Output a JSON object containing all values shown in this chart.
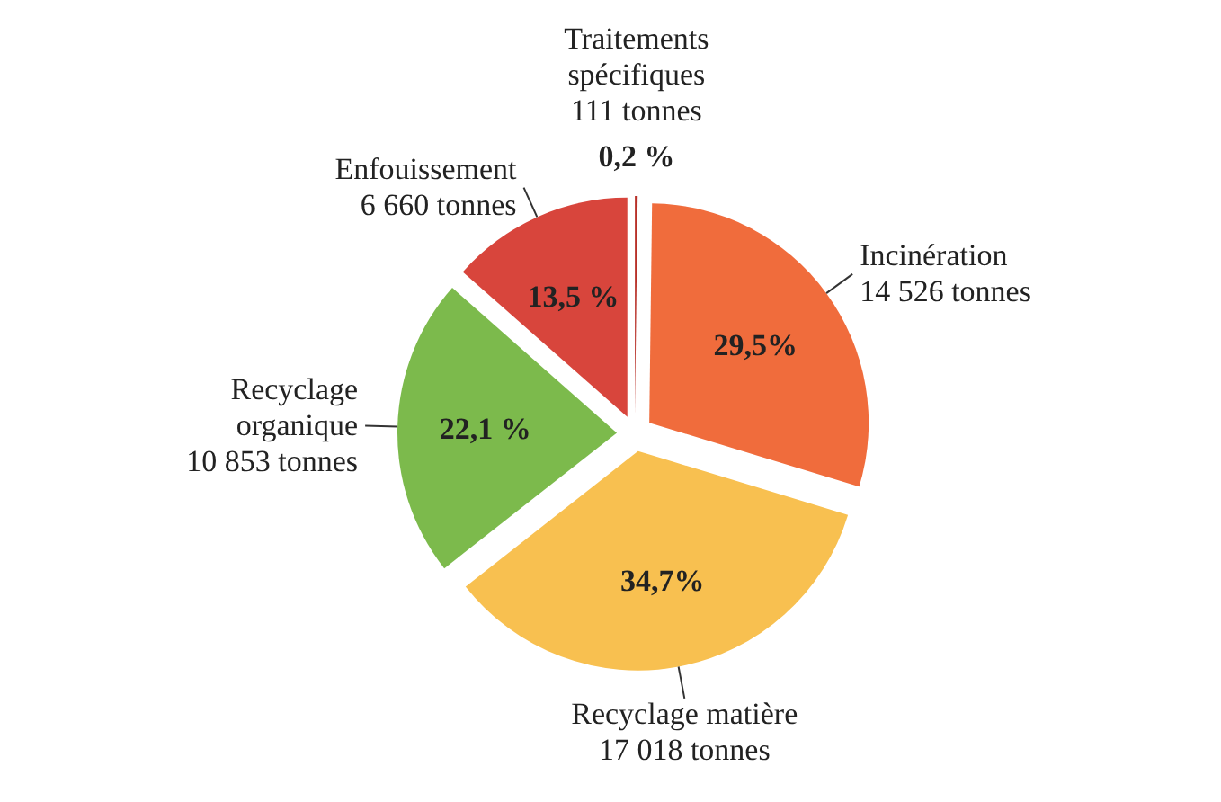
{
  "chart_data": {
    "type": "pie",
    "categories": [
      "Traitements\nspécifiques\n111 tonnes",
      "Incinération\n14 526 tonnes",
      "Recyclage matière\n17 018 tonnes",
      "Recyclage\norganique\n10 853 tonnes",
      "Enfouissement\n6 660 tonnes"
    ],
    "values": [
      0.2,
      29.5,
      34.7,
      22.1,
      13.5
    ],
    "value_labels": [
      "0,2 %",
      "29,5%",
      "34,7%",
      "22,1 %",
      "13,5 %"
    ],
    "colors": [
      "#b83028",
      "#f06c3c",
      "#f8c050",
      "#7cba4c",
      "#d8453c"
    ]
  }
}
